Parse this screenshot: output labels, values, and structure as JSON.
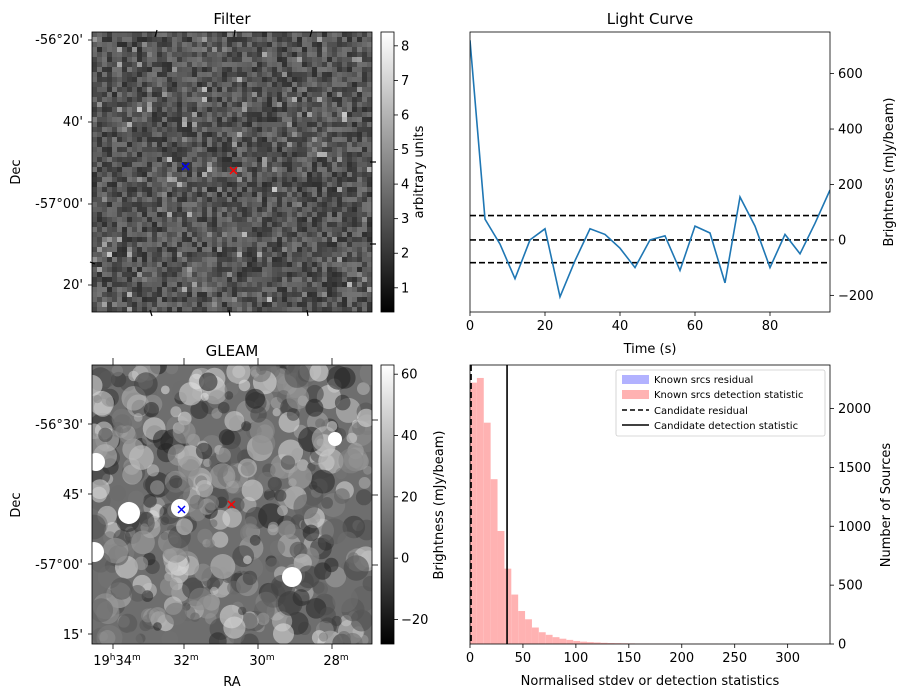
{
  "panels": {
    "filter": {
      "title": "Filter",
      "ylabel": "Dec",
      "dec_ticks": [
        "-56°20'",
        "40'",
        "-57°00'",
        "20'"
      ],
      "colorbar_label": "arbitrary units",
      "colorbar_ticks": [
        "1",
        "2",
        "3",
        "4",
        "5",
        "6",
        "7",
        "8"
      ],
      "colorbar_range": [
        0.3,
        8.4
      ],
      "markers": [
        {
          "name": "blue-x",
          "color": "#0000ff"
        },
        {
          "name": "red-x",
          "color": "#ff0000"
        }
      ]
    },
    "gleam": {
      "title": "GLEAM",
      "ylabel": "Dec",
      "xlabel": "RA",
      "dec_ticks": [
        "-56°30'",
        "45'",
        "-57°00'",
        "15'"
      ],
      "ra_ticks": [
        {
          "main": "19",
          "sup1": "h",
          "rest": "34",
          "sup2": "m"
        },
        {
          "main": "32",
          "sup1": "",
          "rest": "",
          "sup2": "m"
        },
        {
          "main": "30",
          "sup1": "",
          "rest": "",
          "sup2": "m"
        },
        {
          "main": "28",
          "sup1": "",
          "rest": "",
          "sup2": "m"
        }
      ],
      "colorbar_ticks": [
        "−20",
        "0",
        "20",
        "40",
        "60"
      ],
      "colorbar_range": [
        -28,
        63
      ]
    }
  },
  "chart_data": [
    {
      "type": "line",
      "title": "Light Curve",
      "xlabel": "Time (s)",
      "ylabel": "Brightness (mJy/beam)",
      "xlim": [
        0,
        96
      ],
      "ylim": [
        -260,
        750
      ],
      "x_ticks": [
        0,
        20,
        40,
        60,
        80
      ],
      "y_ticks": [
        -200,
        0,
        200,
        400,
        600
      ],
      "x_tick_labels": [
        "0",
        "20",
        "40",
        "60",
        "80"
      ],
      "y_tick_labels": [
        "−200",
        "0",
        "200",
        "400",
        "600"
      ],
      "series": [
        {
          "color": "#1f77b4",
          "x": [
            0,
            4,
            8,
            12,
            16,
            20,
            24,
            28,
            32,
            36,
            40,
            44,
            48,
            52,
            56,
            60,
            64,
            68,
            72,
            76,
            80,
            84,
            88,
            92,
            96
          ],
          "y": [
            720,
            75,
            -15,
            -140,
            0,
            40,
            -205,
            -75,
            40,
            20,
            -30,
            -100,
            0,
            15,
            -110,
            50,
            25,
            -155,
            155,
            50,
            -100,
            20,
            -50,
            60,
            180
          ]
        }
      ],
      "hlines": [
        {
          "y": 88,
          "style": "dashed",
          "color": "#000000"
        },
        {
          "y": 0,
          "style": "dashed",
          "color": "#000000"
        },
        {
          "y": -82,
          "style": "dashed",
          "color": "#000000"
        }
      ]
    },
    {
      "type": "bar",
      "subtype": "histogram",
      "xlabel": "Normalised stdev or detection statistics",
      "ylabel": "Brightness (mJy/beam)",
      "ylabel_right": "Number of Sources",
      "xlim": [
        0,
        340
      ],
      "ylim": [
        0,
        2370
      ],
      "x_ticks": [
        0,
        50,
        100,
        150,
        200,
        250,
        300
      ],
      "x_tick_labels": [
        "0",
        "50",
        "100",
        "150",
        "200",
        "250",
        "300"
      ],
      "y_ticks": [
        0,
        500,
        1000,
        1500,
        2000
      ],
      "y_tick_labels": [
        "0",
        "500",
        "1000",
        "1500",
        "2000"
      ],
      "bin_width": 6.5,
      "series": [
        {
          "name": "Known srcs residual",
          "color": "#b2b2ff",
          "values": []
        },
        {
          "name": "Known srcs detection statistic",
          "color": "#ffb2b2",
          "bin_start": 0,
          "values": [
            2220,
            2260,
            1880,
            1400,
            960,
            640,
            420,
            280,
            210,
            140,
            100,
            78,
            58,
            45,
            35,
            26,
            20,
            16,
            13,
            10,
            8,
            7,
            6,
            5,
            4,
            4,
            3,
            3,
            3,
            2,
            2,
            2,
            2,
            2,
            2,
            2,
            1,
            1,
            1,
            1,
            1,
            1,
            1,
            1,
            1,
            1,
            1,
            1,
            1,
            1
          ]
        }
      ],
      "vlines": [
        {
          "name": "Candidate residual",
          "x": 1,
          "style": "dashed",
          "color": "#000000"
        },
        {
          "name": "Candidate detection statistic",
          "x": 35,
          "style": "solid",
          "color": "#000000"
        }
      ],
      "legend_position": "top-right"
    }
  ]
}
